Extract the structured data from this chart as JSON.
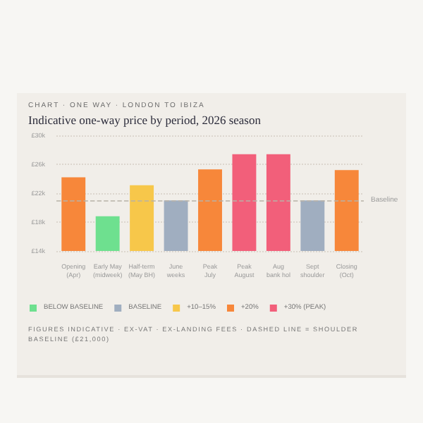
{
  "chart_data": {
    "type": "bar",
    "subtitle": "CHART · ONE WAY · LONDON TO IBIZA",
    "title": "Indicative one-way price by period, 2026 season",
    "categories": [
      "Opening\n(Apr)",
      "Early May\n(midweek)",
      "Half-term\n(May BH)",
      "June\nweeks",
      "Peak\nJuly",
      "Peak\nAugust",
      "Aug\nbank hol",
      "Sept\nshoulder",
      "Closing\n(Oct)"
    ],
    "series": [
      {
        "name": "BELOW BASELINE",
        "color": "#6ee08f",
        "values": [
          null,
          18.8,
          null,
          null,
          null,
          null,
          null,
          null,
          null
        ]
      },
      {
        "name": "BASELINE",
        "color": "#a0aec0",
        "values": [
          null,
          null,
          null,
          21.0,
          null,
          null,
          null,
          21.0,
          null
        ]
      },
      {
        "name": "+10–15%",
        "color": "#f7c74a",
        "values": [
          null,
          null,
          23.1,
          null,
          null,
          null,
          null,
          null,
          null
        ]
      },
      {
        "name": "+20%",
        "color": "#f7873a",
        "values": [
          24.2,
          null,
          null,
          null,
          25.3,
          null,
          null,
          null,
          25.2
        ]
      },
      {
        "name": "+30% (PEAK)",
        "color": "#f25f7a",
        "values": [
          null,
          null,
          null,
          null,
          null,
          27.4,
          27.4,
          null,
          null
        ]
      }
    ],
    "ylim": [
      14,
      30
    ],
    "yticks": [
      {
        "value": 14,
        "label": "£14k"
      },
      {
        "value": 18,
        "label": "£18k"
      },
      {
        "value": 22,
        "label": "£22k"
      },
      {
        "value": 26,
        "label": "£26k"
      },
      {
        "value": 30,
        "label": "£30k"
      }
    ],
    "grid": "y",
    "legend": "bottom left",
    "ref_lines": [
      {
        "axis": "y",
        "value": 21,
        "label": "Baseline",
        "color": "#b8b2a8",
        "line_style": "dashed"
      }
    ],
    "annotations": [
      "FIGURES INDICATIVE · EX-VAT · EX-LANDING FEES · DASHED LINE = SHOULDER BASELINE (£21,000)"
    ]
  }
}
